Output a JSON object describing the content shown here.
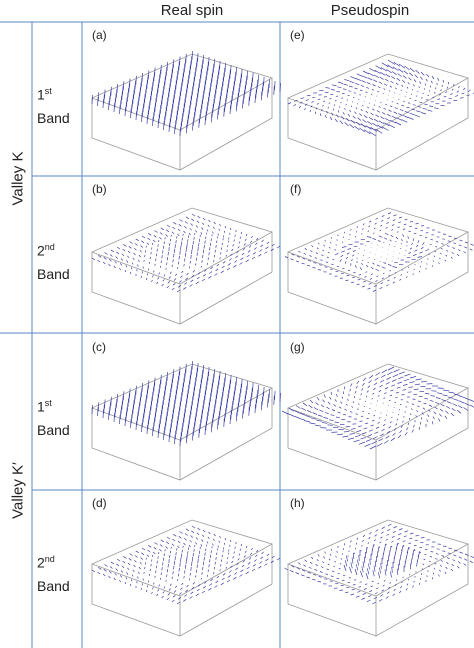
{
  "columns": {
    "real": "Real spin",
    "pseudo": "Pseudospin"
  },
  "valleys": [
    "Valley K",
    "Valley K′"
  ],
  "bands": [
    {
      "num": "1",
      "sup": "st",
      "word": "Band"
    },
    {
      "num": "2",
      "sup": "nd",
      "word": "Band"
    },
    {
      "num": "1",
      "sup": "st",
      "word": "Band"
    },
    {
      "num": "2",
      "sup": "nd",
      "word": "Band"
    }
  ],
  "panels": [
    {
      "label": "(a)",
      "pattern": "vertical-array"
    },
    {
      "label": "(e)",
      "pattern": "radial-vortex"
    },
    {
      "label": "(b)",
      "pattern": "ring"
    },
    {
      "label": "(f)",
      "pattern": "vortex-ring"
    },
    {
      "label": "(c)",
      "pattern": "vertical-array"
    },
    {
      "label": "(g)",
      "pattern": "radial-source"
    },
    {
      "label": "(d)",
      "pattern": "ring"
    },
    {
      "label": "(h)",
      "pattern": "dome-ring"
    }
  ],
  "colors": {
    "grid_lines": "#5b87c5",
    "vectors": "#3b3fa8",
    "box": "#9a9a9a"
  }
}
